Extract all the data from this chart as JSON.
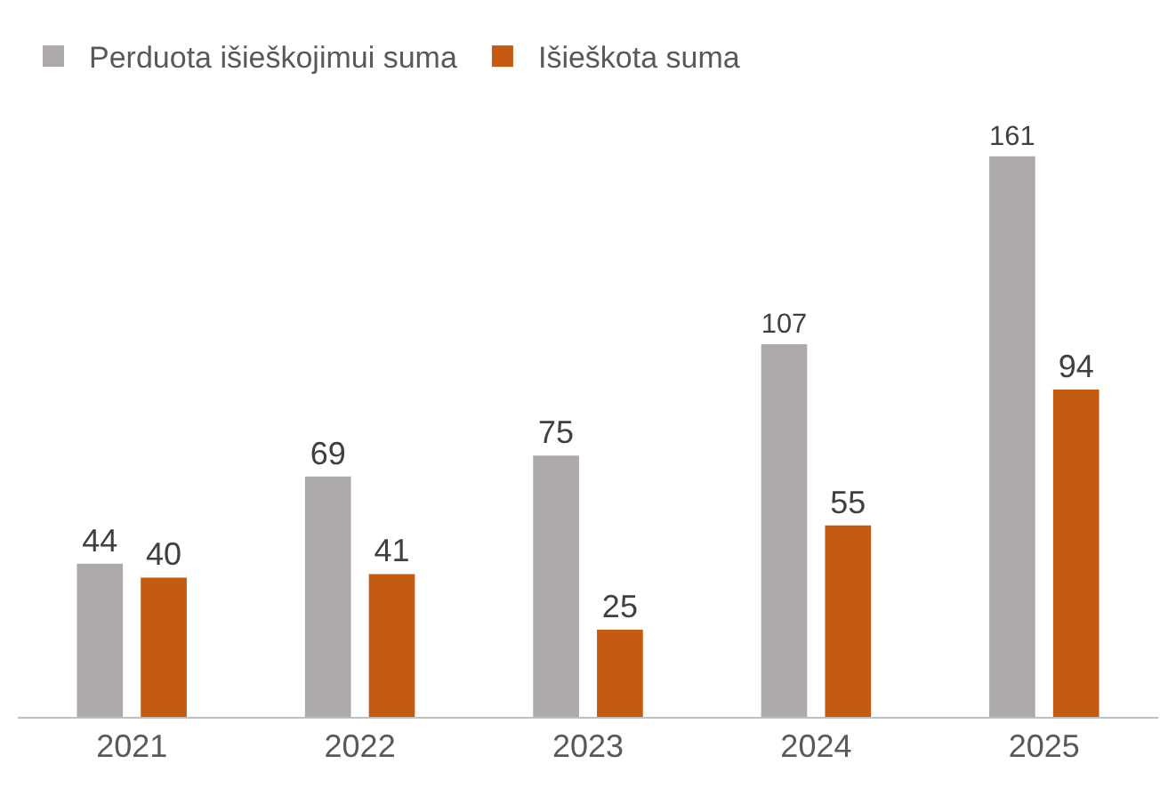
{
  "chart_data": {
    "type": "bar",
    "categories": [
      "2021",
      "2022",
      "2023",
      "2024",
      "2025"
    ],
    "series": [
      {
        "name": "Perduota išieškojimui suma",
        "color": "#aeaaaa",
        "values": [
          44,
          69,
          75,
          107,
          161
        ]
      },
      {
        "name": "Išieškota suma",
        "color": "#c55a11",
        "values": [
          40,
          41,
          25,
          55,
          94
        ]
      }
    ],
    "data_labels": true,
    "legend": "top left"
  }
}
